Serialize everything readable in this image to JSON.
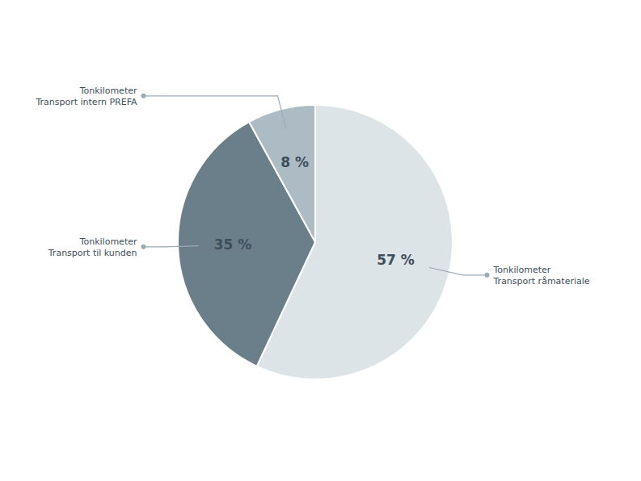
{
  "chart_data": {
    "type": "pie",
    "categories": [
      "Tonkilometer\nTransport råmateriale",
      "Tonkilometer\nTransport til kunden",
      "Tonkilometer\nTransport intern PREFA"
    ],
    "values": [
      57,
      35,
      8
    ],
    "value_labels": [
      "57 %",
      "35 %",
      "8 %"
    ],
    "colors": [
      "#dde4e8",
      "#6b7f8a",
      "#adbcc4"
    ],
    "data_labels": true
  }
}
